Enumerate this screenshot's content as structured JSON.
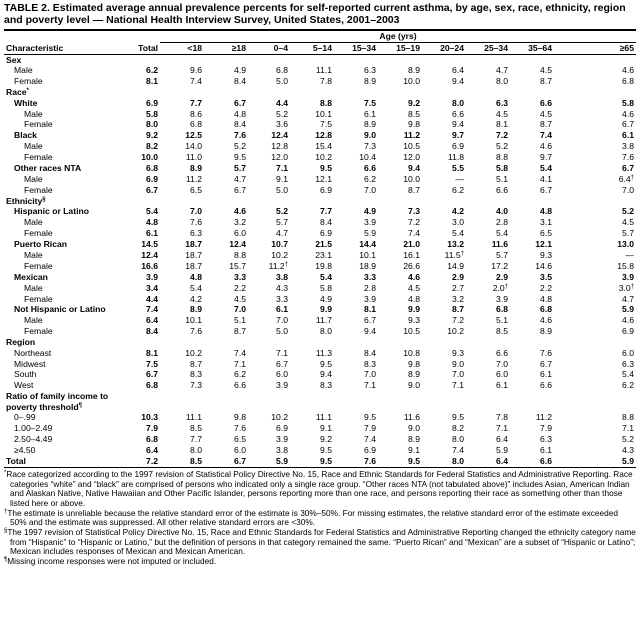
{
  "title": "TABLE 2. Estimated average annual prevalence percents for self-reported current asthma, by age, sex, race, ethnicity, region and poverty level — National Health Interview Survey, United States, 2001–2003",
  "table": {
    "group_header": "Age (yrs)",
    "columns": [
      "Characteristic",
      "Total",
      "<18",
      "≥18",
      "0–4",
      "5–14",
      "15–34",
      "15–19",
      "20–24",
      "25–34",
      "35–64",
      "≥65"
    ],
    "sections": [
      {
        "title": "Sex",
        "rows": [
          {
            "label": "Male",
            "values": [
              "6.2",
              "9.6",
              "4.9",
              "6.8",
              "11.1",
              "6.3",
              "8.9",
              "6.4",
              "4.7",
              "4.5",
              "4.6"
            ]
          },
          {
            "label": "Female",
            "values": [
              "8.1",
              "7.4",
              "8.4",
              "5.0",
              "7.8",
              "8.9",
              "10.0",
              "9.4",
              "8.0",
              "8.7",
              "6.8"
            ]
          }
        ]
      },
      {
        "title": {
          "text": "Race",
          "sup": "*"
        },
        "rows": [
          {
            "label": "White",
            "values": [
              "6.9",
              "7.7",
              "6.7",
              "4.4",
              "8.8",
              "7.5",
              "9.2",
              "8.0",
              "6.3",
              "6.6",
              "5.8"
            ],
            "rows": [
              {
                "label": "Male",
                "values": [
                  "5.8",
                  "8.6",
                  "4.8",
                  "5.2",
                  "10.1",
                  "6.1",
                  "8.5",
                  "6.6",
                  "4.5",
                  "4.5",
                  "4.6"
                ]
              },
              {
                "label": "Female",
                "values": [
                  "8.0",
                  "6.8",
                  "8.4",
                  "3.6",
                  "7.5",
                  "8.9",
                  "9.8",
                  "9.4",
                  "8.1",
                  "8.7",
                  "6.7"
                ]
              }
            ]
          },
          {
            "label": "Black",
            "values": [
              "9.2",
              "12.5",
              "7.6",
              "12.4",
              "12.8",
              "9.0",
              "11.2",
              "9.7",
              "7.2",
              "7.4",
              "6.1"
            ],
            "rows": [
              {
                "label": "Male",
                "values": [
                  "8.2",
                  "14.0",
                  "5.2",
                  "12.8",
                  "15.4",
                  "7.3",
                  "10.5",
                  "6.9",
                  "5.2",
                  "4.6",
                  "3.8"
                ]
              },
              {
                "label": "Female",
                "values": [
                  "10.0",
                  "11.0",
                  "9.5",
                  "12.0",
                  "10.2",
                  "10.4",
                  "12.0",
                  "11.8",
                  "8.8",
                  "9.7",
                  "7.6"
                ]
              }
            ]
          },
          {
            "label": "Other races NTA",
            "values": [
              "6.8",
              "8.9",
              "5.7",
              "7.1",
              "9.5",
              "6.6",
              "9.4",
              "5.5",
              "5.8",
              "5.4",
              "6.7"
            ],
            "rows": [
              {
                "label": "Male",
                "values": [
                  "6.9",
                  "11.2",
                  "4.7",
                  "9.1",
                  "12.1",
                  "6.2",
                  "10.0",
                  "—",
                  "5.1",
                  "4.1",
                  {
                    "text": "6.4",
                    "sup": "†"
                  }
                ]
              },
              {
                "label": "Female",
                "values": [
                  "6.7",
                  "6.5",
                  "6.7",
                  "5.0",
                  "6.9",
                  "7.0",
                  "8.7",
                  "6.2",
                  "6.6",
                  "6.7",
                  "7.0"
                ]
              }
            ]
          }
        ]
      },
      {
        "title": {
          "text": "Ethnicity",
          "sup": "§"
        },
        "rows": [
          {
            "label": "Hispanic or Latino",
            "values": [
              "5.4",
              "7.0",
              "4.6",
              "5.2",
              "7.7",
              "4.9",
              "7.3",
              "4.2",
              "4.0",
              "4.8",
              "5.2"
            ],
            "rows": [
              {
                "label": "Male",
                "values": [
                  "4.8",
                  "7.6",
                  "3.2",
                  "5.7",
                  "8.4",
                  "3.9",
                  "7.2",
                  "3.0",
                  "2.8",
                  "3.1",
                  "4.5"
                ]
              },
              {
                "label": "Female",
                "values": [
                  "6.1",
                  "6.3",
                  "6.0",
                  "4.7",
                  "6.9",
                  "5.9",
                  "7.4",
                  "5.4",
                  "5.4",
                  "6.5",
                  "5.7"
                ]
              }
            ]
          },
          {
            "label": "Puerto Rican",
            "values": [
              "14.5",
              "18.7",
              "12.4",
              "10.7",
              "21.5",
              "14.4",
              "21.0",
              "13.2",
              "11.6",
              "12.1",
              "13.0"
            ],
            "rows": [
              {
                "label": "Male",
                "values": [
                  "12.4",
                  "18.7",
                  "8.8",
                  "10.2",
                  "23.1",
                  "10.1",
                  "16.1",
                  {
                    "text": "11.5",
                    "sup": "†"
                  },
                  "5.7",
                  "9.3",
                  "—"
                ]
              },
              {
                "label": "Female",
                "values": [
                  "16.6",
                  "18.7",
                  "15.7",
                  {
                    "text": "11.2",
                    "sup": "†"
                  },
                  "19.8",
                  "18.9",
                  "26.6",
                  "14.9",
                  "17.2",
                  "14.6",
                  "15.8"
                ]
              }
            ]
          },
          {
            "label": "Mexican",
            "values": [
              "3.9",
              "4.8",
              "3.3",
              "3.8",
              "5.4",
              "3.3",
              "4.6",
              "2.9",
              "2.9",
              "3.5",
              "3.9"
            ],
            "rows": [
              {
                "label": "Male",
                "values": [
                  "3.4",
                  "5.4",
                  "2.2",
                  "4.3",
                  "5.8",
                  "2.8",
                  "4.5",
                  "2.7",
                  {
                    "text": "2.0",
                    "sup": "†"
                  },
                  "2.2",
                  {
                    "text": "3.0",
                    "sup": "†"
                  }
                ]
              },
              {
                "label": "Female",
                "values": [
                  "4.4",
                  "4.2",
                  "4.5",
                  "3.3",
                  "4.9",
                  "3.9",
                  "4.8",
                  "3.2",
                  "3.9",
                  "4.8",
                  "4.7"
                ]
              }
            ]
          },
          {
            "label": "Not Hispanic or Latino",
            "values": [
              "7.4",
              "8.9",
              "7.0",
              "6.1",
              "9.9",
              "8.1",
              "9.9",
              "8.7",
              "6.8",
              "6.8",
              "5.9"
            ],
            "rows": [
              {
                "label": "Male",
                "values": [
                  "6.4",
                  "10.1",
                  "5.1",
                  "7.0",
                  "11.7",
                  "6.7",
                  "9.3",
                  "7.2",
                  "5.1",
                  "4.6",
                  "4.6"
                ]
              },
              {
                "label": "Female",
                "values": [
                  "8.4",
                  "7.6",
                  "8.7",
                  "5.0",
                  "8.0",
                  "9.4",
                  "10.5",
                  "10.2",
                  "8.5",
                  "8.9",
                  "6.9"
                ]
              }
            ]
          }
        ]
      },
      {
        "title": "Region",
        "rows": [
          {
            "label": "Northeast",
            "values": [
              "8.1",
              "10.2",
              "7.4",
              "7.1",
              "11.3",
              "8.4",
              "10.8",
              "9.3",
              "6.6",
              "7.6",
              "6.0"
            ]
          },
          {
            "label": "Midwest",
            "values": [
              "7.5",
              "8.7",
              "7.1",
              "6.7",
              "9.5",
              "8.3",
              "9.8",
              "9.0",
              "7.0",
              "6.7",
              "6.3"
            ]
          },
          {
            "label": "South",
            "values": [
              "6.7",
              "8.3",
              "6.2",
              "6.0",
              "9.4",
              "7.0",
              "8.9",
              "7.0",
              "6.0",
              "6.1",
              "5.4"
            ]
          },
          {
            "label": "West",
            "values": [
              "6.8",
              "7.3",
              "6.6",
              "3.9",
              "8.3",
              "7.1",
              "9.0",
              "7.1",
              "6.1",
              "6.6",
              "6.2"
            ]
          }
        ]
      },
      {
        "title": {
          "text": "Ratio of family income to poverty threshold",
          "sup": "¶"
        },
        "rows": [
          {
            "label": "0–.99",
            "values": [
              "10.3",
              "11.1",
              "9.8",
              "10.2",
              "11.1",
              "9.5",
              "11.6",
              "9.5",
              "7.8",
              "11.2",
              "8.8"
            ]
          },
          {
            "label": "1.00–2.49",
            "values": [
              "7.9",
              "8.5",
              "7.6",
              "6.9",
              "9.1",
              "7.9",
              "9.0",
              "8.2",
              "7.1",
              "7.9",
              "7.1"
            ]
          },
          {
            "label": "2.50–4.49",
            "values": [
              "6.8",
              "7.7",
              "6.5",
              "3.9",
              "9.2",
              "7.4",
              "8.9",
              "8.0",
              "6.4",
              "6.3",
              "5.2"
            ]
          },
          {
            "label": "≥4.50",
            "values": [
              "6.4",
              "8.0",
              "6.0",
              "3.8",
              "9.5",
              "6.9",
              "9.1",
              "7.4",
              "5.9",
              "6.1",
              "4.3"
            ]
          }
        ]
      }
    ],
    "total": {
      "label": "Total",
      "values": [
        "7.2",
        "8.5",
        "6.7",
        "5.9",
        "9.5",
        "7.6",
        "9.5",
        "8.0",
        "6.4",
        "6.6",
        "5.9"
      ]
    }
  },
  "footnotes": [
    {
      "mark": "*",
      "text": "Race categorized according to the 1997 revision of Statistical Policy Directive No. 15, Race and Ethnic Standards for Federal Statistics and Administrative Reporting. Race categories “white” and “black” are comprised of persons who indicated only a single race group. “Other races NTA (not tabulated above)” includes Asian, American Indian and Alaskan Native, Native Hawaiian and Other Pacific Islander, persons reporting more than one race, and persons reporting their race as something other than those listed here or above."
    },
    {
      "mark": "†",
      "text": "The estimate is unreliable because the relative standard error of the estimate is 30%–50%. For missing estimates, the relative standard error of the estimate exceeded 50% and the estimate was suppressed. All other relative standard errors are <30%."
    },
    {
      "mark": "§",
      "text": "The 1997 revision of Statistical Policy Directive No. 15, Race and Ethnic Standards for Federal Statistics and Administrative Reporting changed the ethnicity category name from “Hispanic” to “Hispanic or Latino,” but the definition of persons in that category remained the same. “Puerto Rican” and “Mexican” are a subset of “Hispanic or Latino”; Mexican includes responses of Mexican and Mexican American."
    },
    {
      "mark": "¶",
      "text": "Missing income responses were not imputed or included."
    }
  ]
}
